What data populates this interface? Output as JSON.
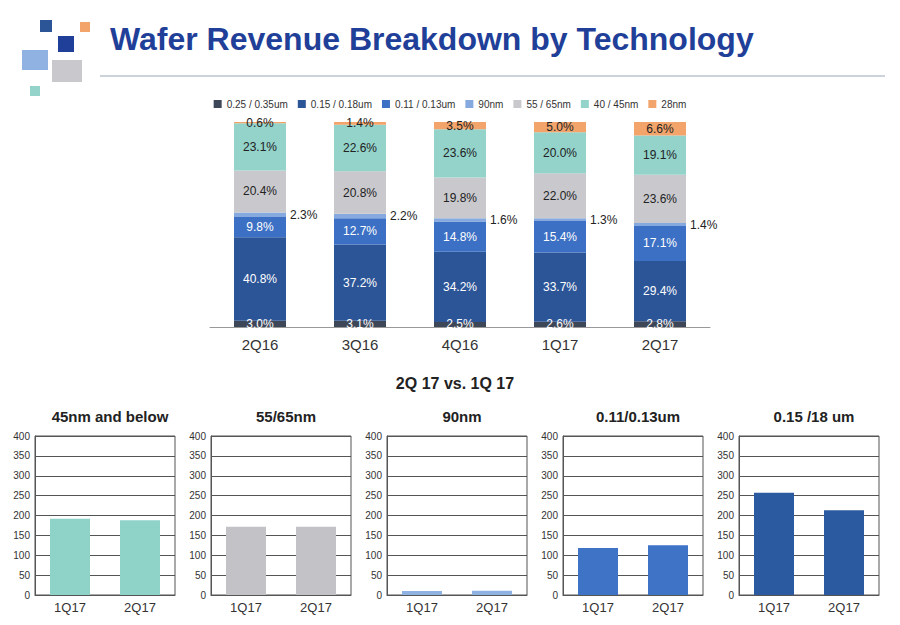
{
  "title": "Wafer Revenue Breakdown by Technology",
  "subtitle": "2Q 17 vs. 1Q 17",
  "chart_data": [
    {
      "type": "bar",
      "stacked": true,
      "data_labels": true,
      "tick_labels": "x",
      "grid": false,
      "legend": "top",
      "categories": [
        "2Q16",
        "3Q16",
        "4Q16",
        "1Q17",
        "2Q17"
      ],
      "ylim": [
        0,
        100
      ],
      "series": [
        {
          "name": "0.25 / 0.35um",
          "color": "#3d4758",
          "values": [
            3.0,
            3.1,
            2.5,
            2.6,
            2.8
          ],
          "value_labels": [
            "3.0%",
            "3.1%",
            "2.5%",
            "2.6%",
            "2.8%"
          ]
        },
        {
          "name": "0.15 / 0.18um",
          "color": "#2c5597",
          "values": [
            40.8,
            37.2,
            34.2,
            33.7,
            29.4
          ],
          "value_labels": [
            "40.8%",
            "37.2%",
            "34.2%",
            "33.7%",
            "29.4%"
          ]
        },
        {
          "name": "0.11 / 0.13um",
          "color": "#3b70c4",
          "values": [
            9.8,
            12.7,
            14.8,
            15.4,
            17.1
          ],
          "value_labels": [
            "9.8%",
            "12.7%",
            "14.8%",
            "15.4%",
            "17.1%"
          ]
        },
        {
          "name": "90nm",
          "color": "#86aadf",
          "values": [
            2.3,
            2.2,
            1.6,
            1.3,
            1.4
          ],
          "value_labels": [
            "2.3%",
            "2.2%",
            "1.6%",
            "1.3%",
            "1.4%"
          ]
        },
        {
          "name": "55 / 65nm",
          "color": "#c9c9cd",
          "values": [
            20.4,
            20.8,
            19.8,
            22.0,
            23.6
          ],
          "value_labels": [
            "20.4%",
            "20.8%",
            "19.8%",
            "22.0%",
            "23.6%"
          ]
        },
        {
          "name": "40 / 45nm",
          "color": "#93d3ca",
          "values": [
            23.1,
            22.6,
            23.6,
            20.0,
            19.1
          ],
          "value_labels": [
            "23.1%",
            "22.6%",
            "23.6%",
            "20.0%",
            "19.1%"
          ]
        },
        {
          "name": "28nm",
          "color": "#f2a46a",
          "values": [
            0.6,
            1.4,
            3.5,
            5.0,
            6.6
          ],
          "value_labels": [
            "0.6%",
            "1.4%",
            "3.5%",
            "5.0%",
            "6.6%"
          ]
        }
      ]
    },
    {
      "type": "bar",
      "title": "45nm and below",
      "categories": [
        "1Q17",
        "2Q17"
      ],
      "values": [
        192,
        188
      ],
      "color": "#8fd3c8",
      "ylim": [
        0,
        400
      ],
      "yticks": [
        0,
        50,
        100,
        150,
        200,
        250,
        300,
        350,
        400
      ],
      "grid": true
    },
    {
      "type": "bar",
      "title": "55/65nm",
      "categories": [
        "1Q17",
        "2Q17"
      ],
      "values": [
        172,
        172
      ],
      "color": "#c3c3c7",
      "ylim": [
        0,
        400
      ],
      "yticks": [
        0,
        50,
        100,
        150,
        200,
        250,
        300,
        350,
        400
      ],
      "grid": true
    },
    {
      "type": "bar",
      "title": "90nm",
      "categories": [
        "1Q17",
        "2Q17"
      ],
      "values": [
        10,
        11
      ],
      "color": "#8fb2e3",
      "ylim": [
        0,
        400
      ],
      "yticks": [
        0,
        50,
        100,
        150,
        200,
        250,
        300,
        350,
        400
      ],
      "grid": true
    },
    {
      "type": "bar",
      "title": "0.11/0.13um",
      "categories": [
        "1Q17",
        "2Q17"
      ],
      "values": [
        118,
        125
      ],
      "color": "#3e73c6",
      "ylim": [
        0,
        400
      ],
      "yticks": [
        0,
        50,
        100,
        150,
        200,
        250,
        300,
        350,
        400
      ],
      "grid": true
    },
    {
      "type": "bar",
      "title": "0.15 /18 um",
      "categories": [
        "1Q17",
        "2Q17"
      ],
      "values": [
        257,
        213
      ],
      "color": "#2c5aa0",
      "ylim": [
        0,
        400
      ],
      "yticks": [
        0,
        50,
        100,
        150,
        200,
        250,
        300,
        350,
        400
      ],
      "grid": true
    }
  ]
}
